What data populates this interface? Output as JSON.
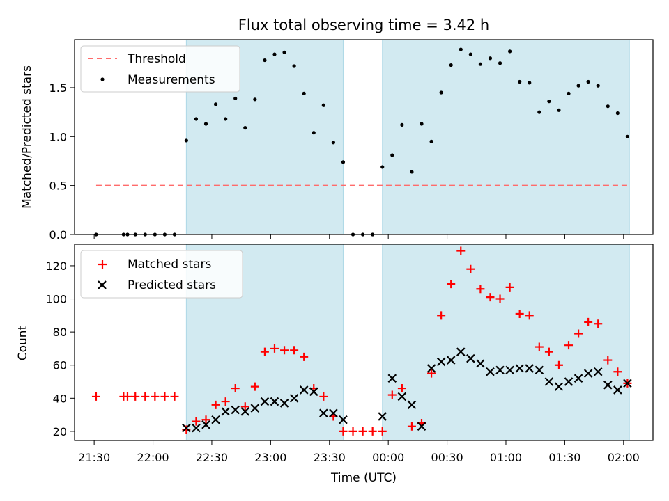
{
  "chart_data": [
    {
      "type": "scatter",
      "title": "Flux total observing time = 3.42 h",
      "xlabel": "",
      "ylabel": "Matched/Predicted stars",
      "ylim": [
        0,
        1.99
      ],
      "xlim": [
        "21:20",
        "02:15"
      ],
      "yticks": [
        "0.0",
        "0.5",
        "1.0",
        "1.5"
      ],
      "threshold": 0.5,
      "shaded_intervals": [
        [
          "22:17",
          "23:37"
        ],
        [
          "23:57",
          "02:03"
        ]
      ],
      "legend": {
        "position": "top-left",
        "entries": [
          "Threshold",
          "Measurements"
        ]
      },
      "colors": {
        "threshold": "#ff6b6b",
        "measurements": "#000000",
        "shade": "#add8e6"
      },
      "series": [
        {
          "name": "Measurements",
          "points": [
            [
              "21:31",
              0.0
            ],
            [
              "21:45",
              0.0
            ],
            [
              "21:47",
              0.0
            ],
            [
              "21:51",
              0.0
            ],
            [
              "21:56",
              0.0
            ],
            [
              "22:01",
              0.0
            ],
            [
              "22:06",
              0.0
            ],
            [
              "22:11",
              0.0
            ],
            [
              "22:17",
              0.96
            ],
            [
              "22:22",
              1.18
            ],
            [
              "22:27",
              1.13
            ],
            [
              "22:32",
              1.33
            ],
            [
              "22:37",
              1.18
            ],
            [
              "22:42",
              1.39
            ],
            [
              "22:47",
              1.09
            ],
            [
              "22:52",
              1.38
            ],
            [
              "22:57",
              1.78
            ],
            [
              "23:02",
              1.84
            ],
            [
              "23:07",
              1.86
            ],
            [
              "23:12",
              1.72
            ],
            [
              "23:17",
              1.44
            ],
            [
              "23:22",
              1.04
            ],
            [
              "23:27",
              1.32
            ],
            [
              "23:32",
              0.94
            ],
            [
              "23:37",
              0.74
            ],
            [
              "23:42",
              0.0
            ],
            [
              "23:47",
              0.0
            ],
            [
              "23:52",
              0.0
            ],
            [
              "23:57",
              0.69
            ],
            [
              "00:02",
              0.81
            ],
            [
              "00:07",
              1.12
            ],
            [
              "00:12",
              0.64
            ],
            [
              "00:17",
              1.13
            ],
            [
              "00:22",
              0.95
            ],
            [
              "00:27",
              1.45
            ],
            [
              "00:32",
              1.73
            ],
            [
              "00:37",
              1.89
            ],
            [
              "00:42",
              1.84
            ],
            [
              "00:47",
              1.74
            ],
            [
              "00:52",
              1.8
            ],
            [
              "00:57",
              1.75
            ],
            [
              "01:02",
              1.87
            ],
            [
              "01:07",
              1.56
            ],
            [
              "01:12",
              1.55
            ],
            [
              "01:17",
              1.25
            ],
            [
              "01:22",
              1.36
            ],
            [
              "01:27",
              1.27
            ],
            [
              "01:32",
              1.44
            ],
            [
              "01:37",
              1.52
            ],
            [
              "01:42",
              1.56
            ],
            [
              "01:47",
              1.52
            ],
            [
              "01:52",
              1.31
            ],
            [
              "01:57",
              1.24
            ],
            [
              "02:02",
              1.0
            ]
          ]
        }
      ]
    },
    {
      "type": "scatter",
      "title": "",
      "xlabel": "Time (UTC)",
      "ylabel": "Count",
      "ylim": [
        14.5,
        133
      ],
      "xlim": [
        "21:20",
        "02:15"
      ],
      "xticks": [
        "21:30",
        "22:00",
        "22:30",
        "23:00",
        "23:30",
        "00:00",
        "00:30",
        "01:00",
        "01:30",
        "02:00"
      ],
      "yticks": [
        "20",
        "40",
        "60",
        "80",
        "100",
        "120"
      ],
      "shaded_intervals": [
        [
          "22:17",
          "23:37"
        ],
        [
          "23:57",
          "02:03"
        ]
      ],
      "legend": {
        "position": "top-left",
        "entries": [
          "Matched stars",
          "Predicted stars"
        ]
      },
      "colors": {
        "matched": "#ff0000",
        "predicted": "#000000",
        "shade": "#add8e6"
      },
      "series": [
        {
          "name": "Matched stars",
          "points": [
            [
              "21:31",
              41
            ],
            [
              "21:45",
              41
            ],
            [
              "21:47",
              41
            ],
            [
              "21:51",
              41
            ],
            [
              "21:56",
              41
            ],
            [
              "22:01",
              41
            ],
            [
              "22:06",
              41
            ],
            [
              "22:11",
              41
            ],
            [
              "22:17",
              21
            ],
            [
              "22:22",
              26
            ],
            [
              "22:27",
              27
            ],
            [
              "22:32",
              36
            ],
            [
              "22:37",
              38
            ],
            [
              "22:42",
              46
            ],
            [
              "22:47",
              35
            ],
            [
              "22:52",
              47
            ],
            [
              "22:57",
              68
            ],
            [
              "23:02",
              70
            ],
            [
              "23:07",
              69
            ],
            [
              "23:12",
              69
            ],
            [
              "23:17",
              65
            ],
            [
              "23:22",
              46
            ],
            [
              "23:27",
              41
            ],
            [
              "23:32",
              29
            ],
            [
              "23:37",
              20
            ],
            [
              "23:42",
              20
            ],
            [
              "23:47",
              20
            ],
            [
              "23:52",
              20
            ],
            [
              "23:57",
              20
            ],
            [
              "00:02",
              42
            ],
            [
              "00:07",
              46
            ],
            [
              "00:12",
              23
            ],
            [
              "00:17",
              25
            ],
            [
              "00:22",
              55
            ],
            [
              "00:27",
              90
            ],
            [
              "00:32",
              109
            ],
            [
              "00:37",
              129
            ],
            [
              "00:42",
              118
            ],
            [
              "00:47",
              106
            ],
            [
              "00:52",
              101
            ],
            [
              "00:57",
              100
            ],
            [
              "01:02",
              107
            ],
            [
              "01:07",
              91
            ],
            [
              "01:12",
              90
            ],
            [
              "01:17",
              71
            ],
            [
              "01:22",
              68
            ],
            [
              "01:27",
              60
            ],
            [
              "01:32",
              72
            ],
            [
              "01:37",
              79
            ],
            [
              "01:42",
              86
            ],
            [
              "01:47",
              85
            ],
            [
              "01:52",
              63
            ],
            [
              "01:57",
              56
            ],
            [
              "02:02",
              49
            ]
          ]
        },
        {
          "name": "Predicted stars",
          "points": [
            [
              "22:17",
              22
            ],
            [
              "22:22",
              22
            ],
            [
              "22:27",
              24
            ],
            [
              "22:32",
              27
            ],
            [
              "22:37",
              32
            ],
            [
              "22:42",
              33
            ],
            [
              "22:47",
              32
            ],
            [
              "22:52",
              34
            ],
            [
              "22:57",
              38
            ],
            [
              "23:02",
              38
            ],
            [
              "23:07",
              37
            ],
            [
              "23:12",
              40
            ],
            [
              "23:17",
              45
            ],
            [
              "23:22",
              44
            ],
            [
              "23:27",
              31
            ],
            [
              "23:32",
              31
            ],
            [
              "23:37",
              27
            ],
            [
              "23:57",
              29
            ],
            [
              "00:02",
              52
            ],
            [
              "00:07",
              41
            ],
            [
              "00:12",
              36
            ],
            [
              "00:17",
              23
            ],
            [
              "00:22",
              58
            ],
            [
              "00:27",
              62
            ],
            [
              "00:32",
              63
            ],
            [
              "00:37",
              68
            ],
            [
              "00:42",
              64
            ],
            [
              "00:47",
              61
            ],
            [
              "00:52",
              56
            ],
            [
              "00:57",
              57
            ],
            [
              "01:02",
              57
            ],
            [
              "01:07",
              58
            ],
            [
              "01:12",
              58
            ],
            [
              "01:17",
              57
            ],
            [
              "01:22",
              50
            ],
            [
              "01:27",
              47
            ],
            [
              "01:32",
              50
            ],
            [
              "01:37",
              52
            ],
            [
              "01:42",
              55
            ],
            [
              "01:47",
              56
            ],
            [
              "01:52",
              48
            ],
            [
              "01:57",
              45
            ],
            [
              "02:02",
              49
            ]
          ]
        }
      ]
    }
  ]
}
